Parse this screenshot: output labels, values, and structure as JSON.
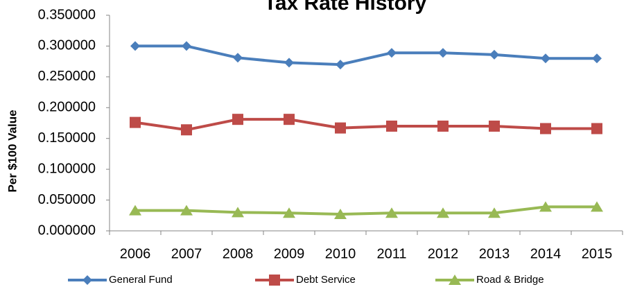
{
  "chart_data": {
    "type": "line",
    "title": "Tax Rate History",
    "y_label": "Per $100 Value",
    "categories": [
      "2006",
      "2007",
      "2008",
      "2009",
      "2010",
      "2011",
      "2012",
      "2013",
      "2014",
      "2015"
    ],
    "series": [
      {
        "name": "General Fund",
        "color": "#4a7ebb",
        "marker": "diamond",
        "values": [
          0.3,
          0.3,
          0.281,
          0.273,
          0.27,
          0.289,
          0.289,
          0.286,
          0.28,
          0.28
        ]
      },
      {
        "name": "Debt Service",
        "color": "#be4b48",
        "marker": "square",
        "values": [
          0.176,
          0.164,
          0.181,
          0.181,
          0.167,
          0.17,
          0.17,
          0.17,
          0.166,
          0.166
        ]
      },
      {
        "name": "Road & Bridge",
        "color": "#98b954",
        "marker": "triangle",
        "values": [
          0.033,
          0.033,
          0.03,
          0.029,
          0.027,
          0.029,
          0.029,
          0.029,
          0.039,
          0.039
        ]
      }
    ],
    "ylim": [
      0,
      0.35
    ],
    "yticks": [
      {
        "value": 0,
        "label": "0.000000"
      },
      {
        "value": 0.05,
        "label": "0.050000"
      },
      {
        "value": 0.1,
        "label": "0.100000"
      },
      {
        "value": 0.15,
        "label": "0.150000"
      },
      {
        "value": 0.2,
        "label": "0.200000"
      },
      {
        "value": 0.25,
        "label": "0.250000"
      },
      {
        "value": 0.3,
        "label": "0.300000"
      },
      {
        "value": 0.35,
        "label": "0.350000"
      }
    ],
    "grid": false,
    "legend": "bottom"
  }
}
